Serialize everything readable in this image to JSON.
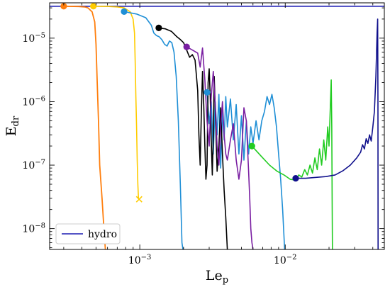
{
  "chart_data": {
    "type": "line",
    "xscale": "log",
    "yscale": "log",
    "xlim": [
      0.00024,
      0.048
    ],
    "ylim": [
      4.7e-09,
      3.6e-05
    ],
    "xlabel": "Le",
    "xlabel_sub": "p",
    "ylabel": "E",
    "ylabel_sub": "dr",
    "x_ticks": [
      {
        "value": 0.001,
        "base": "10",
        "exp": "−3"
      },
      {
        "value": 0.01,
        "base": "10",
        "exp": "−2"
      }
    ],
    "y_ticks": [
      {
        "value": 1e-05,
        "base": "10",
        "exp": "−5"
      },
      {
        "value": 1e-06,
        "base": "10",
        "exp": "−6"
      },
      {
        "value": 1e-07,
        "base": "10",
        "exp": "−7"
      },
      {
        "value": 1e-08,
        "base": "10",
        "exp": "−8"
      }
    ],
    "grid": false,
    "legend": {
      "placement": "bottom-left",
      "entries": [
        {
          "name": "hydro",
          "color": "#1f1fb4"
        }
      ]
    },
    "series": [
      {
        "color": "#1f1fb4",
        "width": 1.6,
        "points": [
          [
            0.00024,
            3.18e-05
          ],
          [
            0.048,
            3.18e-05
          ]
        ]
      },
      {
        "color": "#ff7f0e",
        "width": 1.8,
        "marker": "circle",
        "points": [
          [
            0.0003,
            3.18e-05
          ],
          [
            0.00038,
            3.15e-05
          ],
          [
            0.00042,
            3.1e-05
          ],
          [
            0.00044,
            3e-05
          ],
          [
            0.00047,
            2.6e-05
          ],
          [
            0.00049,
            1.8e-05
          ],
          [
            0.0005,
            8e-06
          ],
          [
            0.00051,
            2e-06
          ],
          [
            0.00052,
            5e-07
          ],
          [
            0.00053,
            1e-07
          ],
          [
            0.00055,
            3e-08
          ],
          [
            0.00057,
            8e-09
          ],
          [
            0.00058,
            4.7e-09
          ]
        ]
      },
      {
        "color": "#ffcc00",
        "width": 1.6,
        "marker": "circle",
        "end_marker": "x",
        "points": [
          [
            0.00048,
            3.18e-05
          ],
          [
            0.0006,
            3.16e-05
          ],
          [
            0.0007,
            3.1e-05
          ],
          [
            0.00078,
            3e-05
          ],
          [
            0.00086,
            2.6e-05
          ],
          [
            0.0009,
            2e-05
          ],
          [
            0.00092,
            1.2e-05
          ],
          [
            0.00093,
            4e-06
          ],
          [
            0.00094,
            1.2e-06
          ],
          [
            0.00095,
            4e-07
          ],
          [
            0.00096,
            1.2e-07
          ],
          [
            0.00097,
            5e-08
          ],
          [
            0.00098,
            3e-08
          ],
          [
            0.00099,
            2.9e-08
          ]
        ]
      },
      {
        "color": "#1f8fd6",
        "width": 1.6,
        "marker": "circle",
        "points": [
          [
            0.00078,
            2.62e-05
          ],
          [
            0.00095,
            2.4e-05
          ],
          [
            0.0011,
            2.1e-05
          ],
          [
            0.0012,
            1.6e-05
          ],
          [
            0.00125,
            1.2e-05
          ],
          [
            0.0013,
            1.1e-05
          ],
          [
            0.00136,
            1.05e-05
          ],
          [
            0.00142,
            9.4e-06
          ],
          [
            0.00148,
            8e-06
          ],
          [
            0.00154,
            7.5e-06
          ],
          [
            0.0016,
            9e-06
          ],
          [
            0.00166,
            8.5e-06
          ],
          [
            0.00172,
            6e-06
          ],
          [
            0.00178,
            2.5e-06
          ],
          [
            0.00184,
            5e-07
          ],
          [
            0.0019,
            5e-08
          ],
          [
            0.00195,
            6e-09
          ],
          [
            0.00198,
            4.7e-09
          ]
        ]
      },
      {
        "color": "#1f8fd6",
        "width": 1.6,
        "marker": "circle",
        "points": [
          [
            0.0029,
            1.4e-06
          ],
          [
            0.003,
            4.5e-07
          ],
          [
            0.0031,
            1e-06
          ],
          [
            0.0032,
            1.5e-07
          ],
          [
            0.0033,
            1e-06
          ],
          [
            0.0034,
            3e-07
          ],
          [
            0.0035,
            1.3e-06
          ],
          [
            0.0036,
            9e-08
          ],
          [
            0.0037,
            7e-07
          ],
          [
            0.0038,
            2.5e-07
          ],
          [
            0.0039,
            1.2e-06
          ],
          [
            0.004,
            4e-07
          ],
          [
            0.0042,
            1.1e-06
          ],
          [
            0.0044,
            2.5e-07
          ],
          [
            0.0046,
            9e-07
          ],
          [
            0.0048,
            1.5e-07
          ],
          [
            0.005,
            6e-07
          ],
          [
            0.0052,
            1.2e-07
          ],
          [
            0.0054,
            5e-07
          ],
          [
            0.0056,
            1.5e-07
          ],
          [
            0.0058,
            4e-07
          ],
          [
            0.006,
            2.2e-07
          ],
          [
            0.0063,
            5e-07
          ],
          [
            0.0066,
            2.5e-07
          ],
          [
            0.0069,
            5e-07
          ],
          [
            0.0072,
            7e-07
          ],
          [
            0.0075,
            1.2e-06
          ],
          [
            0.0078,
            9e-07
          ],
          [
            0.0081,
            1.3e-06
          ],
          [
            0.0084,
            8e-07
          ],
          [
            0.0087,
            4e-07
          ],
          [
            0.009,
            1.5e-07
          ],
          [
            0.0093,
            6e-08
          ],
          [
            0.0096,
            2e-08
          ],
          [
            0.0099,
            4.7e-09
          ]
        ]
      },
      {
        "color": "#000000",
        "width": 1.6,
        "marker": "circle",
        "points": [
          [
            0.00135,
            1.45e-05
          ],
          [
            0.0015,
            1.4e-05
          ],
          [
            0.00165,
            1.28e-05
          ],
          [
            0.0018,
            1.05e-05
          ],
          [
            0.0019,
            9.5e-06
          ],
          [
            0.002,
            8.5e-06
          ],
          [
            0.0021,
            6.5e-06
          ],
          [
            0.0022,
            5e-06
          ],
          [
            0.0023,
            5.5e-06
          ],
          [
            0.0024,
            4.5e-06
          ],
          [
            0.0025,
            1.5e-06
          ],
          [
            0.00255,
            3e-07
          ],
          [
            0.0026,
            1e-07
          ],
          [
            0.00265,
            7e-07
          ],
          [
            0.0027,
            3e-06
          ],
          [
            0.00275,
            9e-07
          ],
          [
            0.0028,
            2e-07
          ],
          [
            0.00285,
            6e-08
          ],
          [
            0.0029,
            1e-07
          ],
          [
            0.00295,
            2e-06
          ],
          [
            0.003,
            3.3e-06
          ],
          [
            0.00305,
            1.2e-06
          ],
          [
            0.0031,
            2.5e-07
          ],
          [
            0.00315,
            7e-08
          ],
          [
            0.0032,
            3e-07
          ],
          [
            0.00325,
            2.5e-06
          ],
          [
            0.0033,
            8e-07
          ],
          [
            0.0034,
            8e-08
          ],
          [
            0.0035,
            2e-07
          ],
          [
            0.0036,
            8e-07
          ],
          [
            0.0037,
            1.5e-07
          ],
          [
            0.0038,
            4e-08
          ],
          [
            0.0039,
            1.5e-08
          ],
          [
            0.004,
            4.7e-09
          ]
        ]
      },
      {
        "color": "#7a1fa2",
        "width": 1.6,
        "marker": "circle",
        "points": [
          [
            0.0021,
            7.3e-06
          ],
          [
            0.0023,
            6.5e-06
          ],
          [
            0.0025,
            5.8e-06
          ],
          [
            0.0026,
            3.5e-06
          ],
          [
            0.0027,
            7e-06
          ],
          [
            0.0028,
            2.2e-06
          ],
          [
            0.0029,
            5e-07
          ],
          [
            0.003,
            2e-07
          ],
          [
            0.0031,
            1.2e-06
          ],
          [
            0.0032,
            3e-06
          ],
          [
            0.0033,
            9e-07
          ],
          [
            0.0034,
            2e-07
          ],
          [
            0.0035,
            1e-07
          ],
          [
            0.0036,
            4e-07
          ],
          [
            0.0037,
            1e-06
          ],
          [
            0.0038,
            3e-07
          ],
          [
            0.0039,
            1.5e-07
          ],
          [
            0.004,
            1.2e-07
          ],
          [
            0.0042,
            2.5e-07
          ],
          [
            0.0044,
            4.5e-07
          ],
          [
            0.0046,
            1.2e-07
          ],
          [
            0.0048,
            6e-08
          ],
          [
            0.005,
            1.2e-07
          ],
          [
            0.0052,
            8e-07
          ],
          [
            0.0054,
            5e-07
          ],
          [
            0.0055,
            2e-07
          ],
          [
            0.0056,
            8e-08
          ],
          [
            0.0057,
            3e-08
          ],
          [
            0.0058,
            1e-08
          ],
          [
            0.0059,
            6e-09
          ],
          [
            0.006,
            4.7e-09
          ]
        ]
      },
      {
        "color": "#22cc22",
        "width": 1.6,
        "marker": "circle",
        "points": [
          [
            0.0059,
            2e-07
          ],
          [
            0.0068,
            1.4e-07
          ],
          [
            0.0078,
            1e-07
          ],
          [
            0.0088,
            8e-08
          ],
          [
            0.0098,
            7e-08
          ],
          [
            0.0108,
            6e-08
          ],
          [
            0.0118,
            5.8e-08
          ],
          [
            0.0124,
            7e-08
          ],
          [
            0.013,
            6.5e-08
          ],
          [
            0.0136,
            8.5e-08
          ],
          [
            0.0142,
            7e-08
          ],
          [
            0.0148,
            1e-07
          ],
          [
            0.0154,
            7.5e-08
          ],
          [
            0.016,
            1.3e-07
          ],
          [
            0.0166,
            8.5e-08
          ],
          [
            0.0172,
            1.8e-07
          ],
          [
            0.0178,
            1e-07
          ],
          [
            0.0184,
            2.5e-07
          ],
          [
            0.019,
            1.2e-07
          ],
          [
            0.0196,
            4e-07
          ],
          [
            0.02,
            2e-07
          ],
          [
            0.0204,
            8e-07
          ],
          [
            0.0207,
            2.2e-06
          ],
          [
            0.0209,
            4e-07
          ],
          [
            0.021,
            3e-08
          ],
          [
            0.0211,
            4.7e-09
          ]
        ]
      },
      {
        "color": "#10108c",
        "width": 1.6,
        "marker": "circle",
        "points": [
          [
            0.0118,
            6.2e-08
          ],
          [
            0.0138,
            6.2e-08
          ],
          [
            0.016,
            6.4e-08
          ],
          [
            0.019,
            6.6e-08
          ],
          [
            0.022,
            7e-08
          ],
          [
            0.025,
            8.2e-08
          ],
          [
            0.028,
            1e-07
          ],
          [
            0.031,
            1.3e-07
          ],
          [
            0.033,
            1.6e-07
          ],
          [
            0.034,
            2.1e-07
          ],
          [
            0.035,
            1.8e-07
          ],
          [
            0.036,
            2.6e-07
          ],
          [
            0.037,
            2.2e-07
          ],
          [
            0.038,
            3e-07
          ],
          [
            0.039,
            2.4e-07
          ],
          [
            0.04,
            4e-07
          ],
          [
            0.041,
            7e-07
          ],
          [
            0.042,
            2.5e-06
          ],
          [
            0.0428,
            1.2e-05
          ],
          [
            0.0432,
            2e-05
          ],
          [
            0.0434,
            1e-06
          ],
          [
            0.0435,
            4.7e-09
          ]
        ]
      }
    ]
  }
}
